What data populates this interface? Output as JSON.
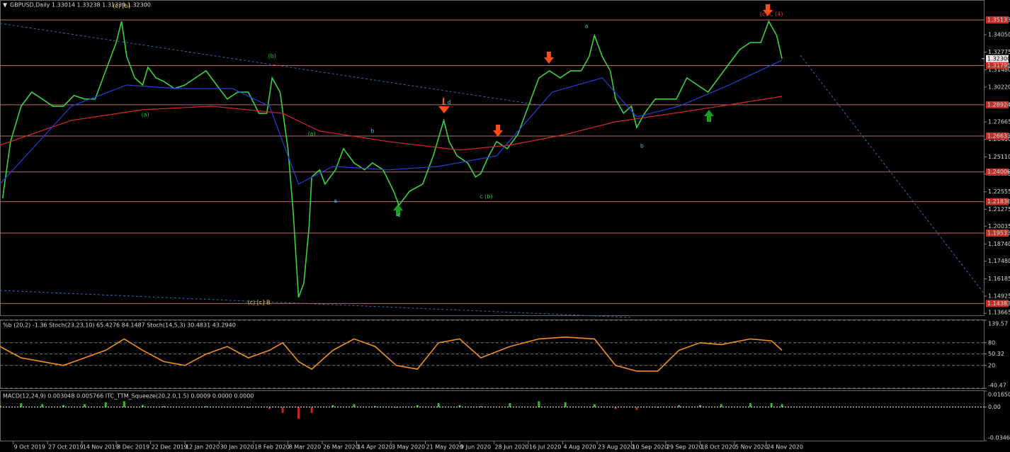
{
  "chart_data": [
    {
      "type": "line",
      "title": "GBPUSD,Daily  1.33014 1.33238 1.31339 1.32300",
      "xlim": [
        0,
        372.65
      ],
      "ylim": [
        1.1352,
        1.3659
      ],
      "xticks": [
        {
          "value": 5,
          "label": "9 Oct 2019"
        },
        {
          "value": 18,
          "label": "27 Oct 2019"
        },
        {
          "value": 31,
          "label": "14 Nov 2019"
        },
        {
          "value": 44,
          "label": "3 Dec 2019"
        },
        {
          "value": 57,
          "label": "22 Dec 2019"
        },
        {
          "value": 70,
          "label": "12 Jan 2020"
        },
        {
          "value": 83,
          "label": "30 Jan 2020"
        },
        {
          "value": 96,
          "label": "18 Feb 2020"
        },
        {
          "value": 109,
          "label": "8 Mar 2020"
        },
        {
          "value": 122,
          "label": "26 Mar 2020"
        },
        {
          "value": 135,
          "label": "14 Apr 2020"
        },
        {
          "value": 148,
          "label": "3 May 2020"
        },
        {
          "value": 161,
          "label": "21 May 2020"
        },
        {
          "value": 174,
          "label": "9 Jun 2020"
        },
        {
          "value": 187,
          "label": "28 Jun 2020"
        },
        {
          "value": 200,
          "label": "16 Jul 2020"
        },
        {
          "value": 213,
          "label": "4 Aug 2020"
        },
        {
          "value": 226,
          "label": "23 Aug 2020"
        },
        {
          "value": 239,
          "label": "10 Sep 2020"
        },
        {
          "value": 252,
          "label": "29 Sep 2020"
        },
        {
          "value": 265,
          "label": "18 Oct 2020"
        },
        {
          "value": 278,
          "label": "5 Nov 2020"
        },
        {
          "value": 290,
          "label": "24 Nov 2020"
        }
      ],
      "yticks": [
        {
          "value": 1.3405,
          "label": "1.34050"
        },
        1.32775,
        {
          "value": 1.3148,
          "label": "1.31480"
        },
        {
          "value": 1.3022,
          "label": "1.30220"
        },
        1.27665,
        {
          "value": 1.264,
          "label": "1.26400"
        },
        {
          "value": 1.2511,
          "label": "1.25110"
        },
        {
          "value": 1.2385,
          "label": "1.23850"
        },
        1.22555,
        1.21275,
        1.20035,
        {
          "value": 1.1874,
          "label": "1.18740"
        },
        {
          "value": 1.1748,
          "label": "1.17480"
        },
        1.16185,
        1.14925,
        1.13665
      ],
      "levels": [
        1.35133,
        1.31795,
        1.28924,
        1.26633,
        1.24006,
        1.21836,
        1.19533,
        1.14383
      ],
      "level_color": "#b86a6a",
      "last_price": {
        "value": 1.323,
        "label": "1.32300"
      },
      "series": [
        {
          "color": "#3cd23c",
          "x": [
            1,
            4,
            8,
            12,
            16,
            20,
            24,
            28,
            32,
            36,
            40,
            44,
            46,
            48,
            51,
            54,
            56,
            59,
            62,
            66,
            70,
            74,
            78,
            82,
            86,
            90,
            94,
            98,
            101,
            103,
            106,
            109,
            111,
            113,
            115,
            117,
            118,
            121,
            123,
            127,
            130,
            134,
            138,
            141,
            145,
            149,
            151,
            155,
            160,
            164,
            168,
            170,
            173,
            177,
            180,
            182,
            185,
            188,
            192,
            196,
            200,
            204,
            208,
            212,
            216,
            220,
            223,
            225,
            228,
            231,
            233,
            236,
            239,
            241,
            244,
            248,
            252,
            256,
            260,
            264,
            268,
            272,
            276,
            280,
            284,
            288,
            291,
            294,
            296
          ],
          "values": [
            1.2208,
            1.2623,
            1.2882,
            1.2985,
            1.2934,
            1.2882,
            1.2882,
            1.296,
            1.2934,
            1.2934,
            1.3141,
            1.3348,
            1.3503,
            1.3244,
            1.3089,
            1.3037,
            1.3167,
            1.3089,
            1.3063,
            1.3011,
            1.3037,
            1.3089,
            1.3141,
            1.3037,
            1.2934,
            1.2985,
            1.2985,
            1.283,
            1.283,
            1.3089,
            1.2985,
            1.2571,
            1.2105,
            1.1483,
            1.1587,
            1.2001,
            1.2364,
            1.2416,
            1.2312,
            1.2416,
            1.2571,
            1.2467,
            1.2416,
            1.2467,
            1.2416,
            1.226,
            1.2157,
            1.226,
            1.2312,
            1.2519,
            1.2778,
            1.2623,
            1.2519,
            1.2467,
            1.2364,
            1.239,
            1.2519,
            1.2623,
            1.2571,
            1.2675,
            1.2882,
            1.3089,
            1.3141,
            1.3089,
            1.3141,
            1.3141,
            1.3244,
            1.34,
            1.3244,
            1.3141,
            1.2934,
            1.283,
            1.2882,
            1.2726,
            1.283,
            1.2934,
            1.2934,
            1.2934,
            1.3089,
            1.3037,
            1.2985,
            1.3089,
            1.3193,
            1.3296,
            1.3348,
            1.3348,
            1.3503,
            1.34,
            1.323
          ]
        },
        {
          "color": "#d42a2a",
          "x": [
            0,
            27,
            54,
            80,
            107,
            121,
            147,
            174,
            193,
            214,
            233,
            255,
            276,
            296
          ],
          "values": [
            1.2597,
            1.2778,
            1.2856,
            1.2882,
            1.283,
            1.27,
            1.2623,
            1.2561,
            1.2597,
            1.2675,
            1.2768,
            1.283,
            1.2892,
            1.2954
          ]
        },
        {
          "color": "#2a3fd4",
          "x": [
            0,
            27,
            48,
            67,
            88,
            102,
            113,
            126,
            147,
            166,
            188,
            209,
            228,
            241,
            257,
            276,
            296
          ],
          "values": [
            1.2312,
            1.2882,
            1.3037,
            1.3011,
            1.3011,
            1.2882,
            1.2312,
            1.2441,
            1.2416,
            1.2441,
            1.2519,
            1.2985,
            1.3089,
            1.2804,
            1.2882,
            1.3037,
            1.3219
          ]
        }
      ],
      "annotations": [
        {
          "text": "(c) [b]",
          "x": 46,
          "y": 1.3615,
          "color": "#e0d040"
        },
        {
          "text": "(a)",
          "x": 55,
          "y": 1.282,
          "color": "#30c030"
        },
        {
          "text": "(b)",
          "x": 103,
          "y": 1.325,
          "color": "#30c030"
        },
        {
          "text": "(c) [c] B",
          "x": 98,
          "y": 1.1445,
          "color": "#e0d040"
        },
        {
          "text": "(a)",
          "x": 118,
          "y": 1.268,
          "color": "#30c030"
        },
        {
          "text": "a",
          "x": 127,
          "y": 1.219,
          "color": "#40c0e0"
        },
        {
          "text": "b",
          "x": 141,
          "y": 1.27,
          "color": "#40c0e0"
        },
        {
          "text": "c",
          "x": 151,
          "y": 1.2085,
          "color": "#40c0e0"
        },
        {
          "text": "d",
          "x": 170,
          "y": 1.291,
          "color": "#40c0e0"
        },
        {
          "text": "c (b)",
          "x": 184,
          "y": 1.222,
          "color": "#30c030"
        },
        {
          "text": "a",
          "x": 222,
          "y": 1.3467,
          "color": "#40c0e0"
        },
        {
          "text": "b",
          "x": 243,
          "y": 1.2592,
          "color": "#40c0e0"
        },
        {
          "text": "(c) C (4)",
          "x": 292,
          "y": 1.3555,
          "color": "#d04040"
        }
      ]
    },
    {
      "type": "line",
      "title": "%b (20,2) -1.36  Stoch(23,23,10) 65.4276 84.1487  Stoch(14,5,3) 30.4831 43.2940",
      "xlim": [
        0,
        372.65
      ],
      "ylim": [
        -40.47,
        139.57
      ],
      "yticks": [
        139.57,
        80,
        50.32,
        20,
        -40.47
      ],
      "series": [
        {
          "color": "#f0901c",
          "x": [
            0,
            8,
            16,
            24,
            32,
            40,
            47,
            54,
            62,
            70,
            78,
            86,
            94,
            102,
            107,
            113,
            118,
            126,
            134,
            142,
            150,
            158,
            166,
            174,
            182,
            193,
            204,
            214,
            225,
            233,
            241,
            249,
            257,
            265,
            273,
            284,
            292,
            296
          ],
          "values": [
            70,
            40,
            30,
            20,
            40,
            60,
            90,
            60,
            30,
            20,
            50,
            70,
            40,
            60,
            80,
            30,
            10,
            60,
            90,
            70,
            20,
            10,
            80,
            90,
            40,
            70,
            90,
            95,
            90,
            20,
            5,
            5,
            60,
            80,
            75,
            90,
            85,
            60
          ]
        }
      ]
    },
    {
      "type": "bar",
      "title": "MACD(12,24,9) 0.003048 0.005766  ITC_TTM_Squeeze(20,2.0,1.5) 0.0009 0.0000 0.0000",
      "xlim": [
        0,
        372.65
      ],
      "ylim": [
        -0.034699,
        0.016502
      ],
      "yticks": [
        0.016502,
        {
          "value": 0,
          "label": "0.00"
        },
        -0.034699
      ],
      "pos_color": "#2fbf2f",
      "neg_color": "#d02020",
      "x": [
        0,
        8,
        16,
        24,
        32,
        40,
        47,
        54,
        62,
        70,
        78,
        86,
        94,
        102,
        107,
        113,
        118,
        126,
        134,
        142,
        150,
        158,
        166,
        174,
        182,
        193,
        204,
        214,
        225,
        233,
        241,
        249,
        257,
        265,
        273,
        284,
        292,
        296
      ],
      "values": [
        0.002,
        0.004,
        0.003,
        0.002,
        0.003,
        0.005,
        0.006,
        0.002,
        0.001,
        0.0005,
        0.001,
        0,
        -0.001,
        -0.002,
        -0.006,
        -0.012,
        -0.006,
        0.002,
        0.003,
        0.001,
        -0.001,
        0.002,
        0.004,
        0.002,
        0.001,
        0.004,
        0.006,
        0.005,
        0.003,
        -0.002,
        -0.003,
        -0.001,
        0.002,
        0.002,
        0.003,
        0.004,
        0.004,
        0.003
      ]
    }
  ]
}
